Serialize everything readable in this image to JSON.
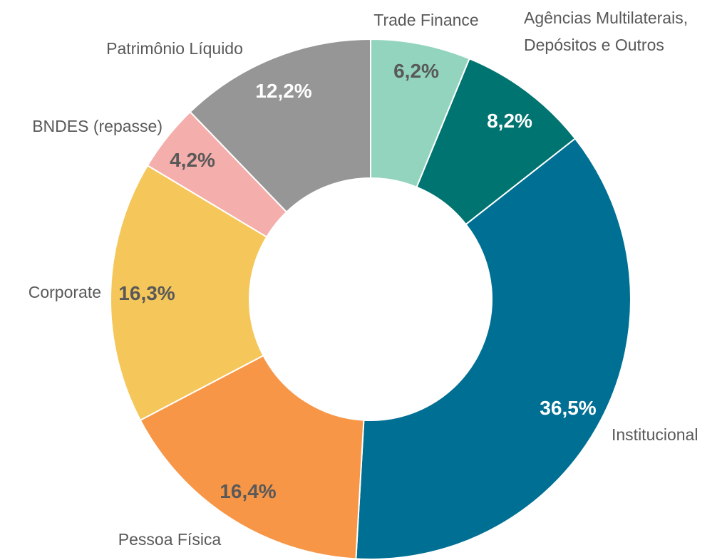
{
  "chart_data": {
    "type": "donut",
    "categories": [
      "Trade Finance",
      "Agências Multilaterais, Depósitos e Outros",
      "Institucional",
      "Pessoa Física",
      "Corporate",
      "BNDES (repasse)",
      "Patrimônio Líquido"
    ],
    "values": [
      6.2,
      8.2,
      36.5,
      16.4,
      16.3,
      4.2,
      12.2
    ],
    "value_labels": [
      "6,2%",
      "8,2%",
      "36,5%",
      "16,4%",
      "16,3%",
      "4,2%",
      "12,2%"
    ],
    "colors": [
      "#93d4bf",
      "#007470",
      "#006f94",
      "#f79646",
      "#f5c75a",
      "#f4aeab",
      "#969696"
    ]
  }
}
